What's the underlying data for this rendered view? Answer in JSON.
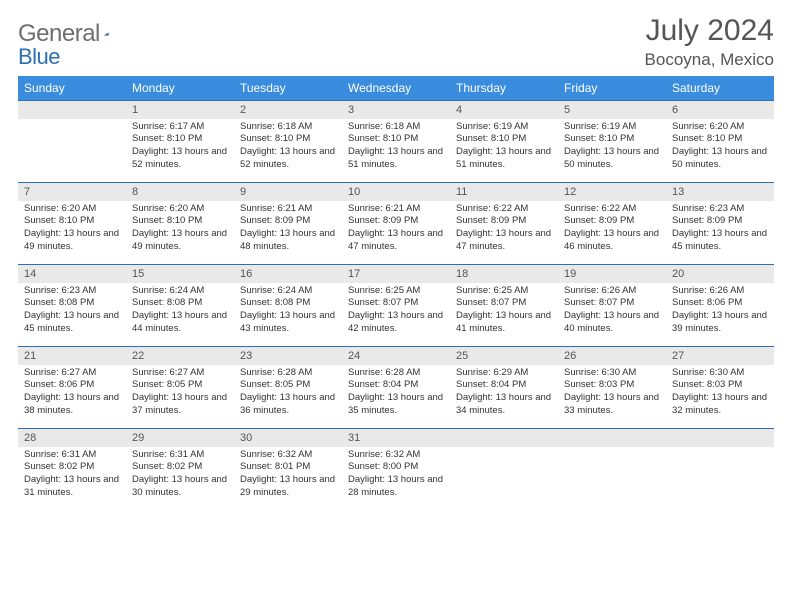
{
  "logo": {
    "word1": "General",
    "word2": "Blue"
  },
  "title": "July 2024",
  "location": "Bocoyna, Mexico",
  "colors": {
    "header_bg": "#3a8dde",
    "header_text": "#ffffff",
    "daynum_bg": "#e9e9e9",
    "rule": "#2f6fb0",
    "body_text": "#333333",
    "title_text": "#555555",
    "logo_gray": "#6e6e6e",
    "logo_blue": "#2f6fb0"
  },
  "weekdays": [
    "Sunday",
    "Monday",
    "Tuesday",
    "Wednesday",
    "Thursday",
    "Friday",
    "Saturday"
  ],
  "weeks": [
    {
      "nums": [
        "",
        "1",
        "2",
        "3",
        "4",
        "5",
        "6"
      ],
      "cells": [
        null,
        {
          "sunrise": "Sunrise: 6:17 AM",
          "sunset": "Sunset: 8:10 PM",
          "daylight": "Daylight: 13 hours and 52 minutes."
        },
        {
          "sunrise": "Sunrise: 6:18 AM",
          "sunset": "Sunset: 8:10 PM",
          "daylight": "Daylight: 13 hours and 52 minutes."
        },
        {
          "sunrise": "Sunrise: 6:18 AM",
          "sunset": "Sunset: 8:10 PM",
          "daylight": "Daylight: 13 hours and 51 minutes."
        },
        {
          "sunrise": "Sunrise: 6:19 AM",
          "sunset": "Sunset: 8:10 PM",
          "daylight": "Daylight: 13 hours and 51 minutes."
        },
        {
          "sunrise": "Sunrise: 6:19 AM",
          "sunset": "Sunset: 8:10 PM",
          "daylight": "Daylight: 13 hours and 50 minutes."
        },
        {
          "sunrise": "Sunrise: 6:20 AM",
          "sunset": "Sunset: 8:10 PM",
          "daylight": "Daylight: 13 hours and 50 minutes."
        }
      ]
    },
    {
      "nums": [
        "7",
        "8",
        "9",
        "10",
        "11",
        "12",
        "13"
      ],
      "cells": [
        {
          "sunrise": "Sunrise: 6:20 AM",
          "sunset": "Sunset: 8:10 PM",
          "daylight": "Daylight: 13 hours and 49 minutes."
        },
        {
          "sunrise": "Sunrise: 6:20 AM",
          "sunset": "Sunset: 8:10 PM",
          "daylight": "Daylight: 13 hours and 49 minutes."
        },
        {
          "sunrise": "Sunrise: 6:21 AM",
          "sunset": "Sunset: 8:09 PM",
          "daylight": "Daylight: 13 hours and 48 minutes."
        },
        {
          "sunrise": "Sunrise: 6:21 AM",
          "sunset": "Sunset: 8:09 PM",
          "daylight": "Daylight: 13 hours and 47 minutes."
        },
        {
          "sunrise": "Sunrise: 6:22 AM",
          "sunset": "Sunset: 8:09 PM",
          "daylight": "Daylight: 13 hours and 47 minutes."
        },
        {
          "sunrise": "Sunrise: 6:22 AM",
          "sunset": "Sunset: 8:09 PM",
          "daylight": "Daylight: 13 hours and 46 minutes."
        },
        {
          "sunrise": "Sunrise: 6:23 AM",
          "sunset": "Sunset: 8:09 PM",
          "daylight": "Daylight: 13 hours and 45 minutes."
        }
      ]
    },
    {
      "nums": [
        "14",
        "15",
        "16",
        "17",
        "18",
        "19",
        "20"
      ],
      "cells": [
        {
          "sunrise": "Sunrise: 6:23 AM",
          "sunset": "Sunset: 8:08 PM",
          "daylight": "Daylight: 13 hours and 45 minutes."
        },
        {
          "sunrise": "Sunrise: 6:24 AM",
          "sunset": "Sunset: 8:08 PM",
          "daylight": "Daylight: 13 hours and 44 minutes."
        },
        {
          "sunrise": "Sunrise: 6:24 AM",
          "sunset": "Sunset: 8:08 PM",
          "daylight": "Daylight: 13 hours and 43 minutes."
        },
        {
          "sunrise": "Sunrise: 6:25 AM",
          "sunset": "Sunset: 8:07 PM",
          "daylight": "Daylight: 13 hours and 42 minutes."
        },
        {
          "sunrise": "Sunrise: 6:25 AM",
          "sunset": "Sunset: 8:07 PM",
          "daylight": "Daylight: 13 hours and 41 minutes."
        },
        {
          "sunrise": "Sunrise: 6:26 AM",
          "sunset": "Sunset: 8:07 PM",
          "daylight": "Daylight: 13 hours and 40 minutes."
        },
        {
          "sunrise": "Sunrise: 6:26 AM",
          "sunset": "Sunset: 8:06 PM",
          "daylight": "Daylight: 13 hours and 39 minutes."
        }
      ]
    },
    {
      "nums": [
        "21",
        "22",
        "23",
        "24",
        "25",
        "26",
        "27"
      ],
      "cells": [
        {
          "sunrise": "Sunrise: 6:27 AM",
          "sunset": "Sunset: 8:06 PM",
          "daylight": "Daylight: 13 hours and 38 minutes."
        },
        {
          "sunrise": "Sunrise: 6:27 AM",
          "sunset": "Sunset: 8:05 PM",
          "daylight": "Daylight: 13 hours and 37 minutes."
        },
        {
          "sunrise": "Sunrise: 6:28 AM",
          "sunset": "Sunset: 8:05 PM",
          "daylight": "Daylight: 13 hours and 36 minutes."
        },
        {
          "sunrise": "Sunrise: 6:28 AM",
          "sunset": "Sunset: 8:04 PM",
          "daylight": "Daylight: 13 hours and 35 minutes."
        },
        {
          "sunrise": "Sunrise: 6:29 AM",
          "sunset": "Sunset: 8:04 PM",
          "daylight": "Daylight: 13 hours and 34 minutes."
        },
        {
          "sunrise": "Sunrise: 6:30 AM",
          "sunset": "Sunset: 8:03 PM",
          "daylight": "Daylight: 13 hours and 33 minutes."
        },
        {
          "sunrise": "Sunrise: 6:30 AM",
          "sunset": "Sunset: 8:03 PM",
          "daylight": "Daylight: 13 hours and 32 minutes."
        }
      ]
    },
    {
      "nums": [
        "28",
        "29",
        "30",
        "31",
        "",
        "",
        ""
      ],
      "cells": [
        {
          "sunrise": "Sunrise: 6:31 AM",
          "sunset": "Sunset: 8:02 PM",
          "daylight": "Daylight: 13 hours and 31 minutes."
        },
        {
          "sunrise": "Sunrise: 6:31 AM",
          "sunset": "Sunset: 8:02 PM",
          "daylight": "Daylight: 13 hours and 30 minutes."
        },
        {
          "sunrise": "Sunrise: 6:32 AM",
          "sunset": "Sunset: 8:01 PM",
          "daylight": "Daylight: 13 hours and 29 minutes."
        },
        {
          "sunrise": "Sunrise: 6:32 AM",
          "sunset": "Sunset: 8:00 PM",
          "daylight": "Daylight: 13 hours and 28 minutes."
        },
        null,
        null,
        null
      ]
    }
  ]
}
